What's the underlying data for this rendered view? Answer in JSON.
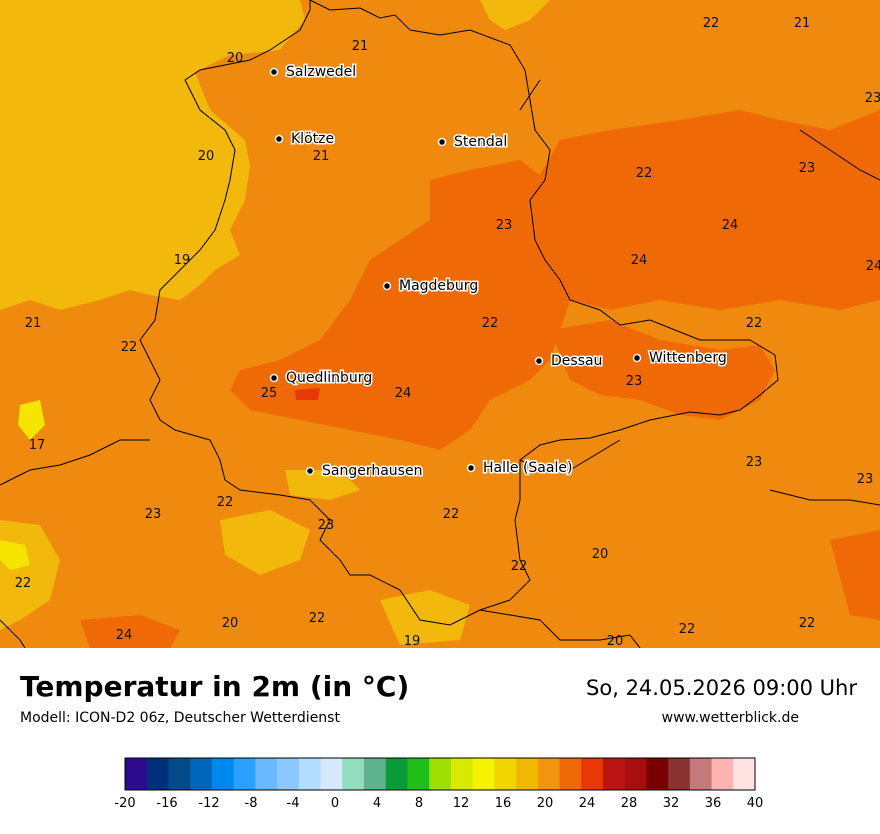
{
  "title": "Temperatur in 2m (in °C)",
  "model": "Modell: ICON-D2 06z, Deutscher Wetterdienst",
  "datetime": "So, 24.05.2026 09:00 Uhr",
  "website": "www.wetterblick.de",
  "cities": [
    {
      "name": "Salzwedel"
    },
    {
      "name": "Klötze"
    },
    {
      "name": "Stendal"
    },
    {
      "name": "Magdeburg"
    },
    {
      "name": "Dessau"
    },
    {
      "name": "Wittenberg"
    },
    {
      "name": "Quedlinburg"
    },
    {
      "name": "Sangerhausen"
    },
    {
      "name": "Halle (Saale)"
    }
  ],
  "temperature_labels": [
    "22",
    "21",
    "21",
    "20",
    "23",
    "20",
    "21",
    "22",
    "23",
    "23",
    "24",
    "24",
    "24",
    "19",
    "21",
    "22",
    "22",
    "23",
    "25",
    "24",
    "17",
    "23",
    "23",
    "22",
    "22",
    "23",
    "20",
    "22",
    "22",
    "24",
    "20",
    "22",
    "19",
    "20",
    "22",
    "22"
  ],
  "legend": {
    "ticks": [
      "-20",
      "-16",
      "-12",
      "-8",
      "-4",
      "0",
      "4",
      "8",
      "12",
      "16",
      "20",
      "24",
      "28",
      "32",
      "36",
      "40"
    ],
    "colors": [
      "#2e0a8e",
      "#00307c",
      "#004a8a",
      "#0066bb",
      "#0088ee",
      "#2aa0ff",
      "#6ab8ff",
      "#8cc8ff",
      "#b4dcff",
      "#d6eaff",
      "#94dcbe",
      "#5eb28c",
      "#0a9a38",
      "#20be18",
      "#9ede00",
      "#d8ea00",
      "#f4f400",
      "#f2d400",
      "#f2b800",
      "#f29410",
      "#ef6a06",
      "#e83808",
      "#bc1414",
      "#a80e0e",
      "#7a0000",
      "#8a3232",
      "#c47a7a",
      "#ffb4b4",
      "#ffe2e2"
    ]
  }
}
